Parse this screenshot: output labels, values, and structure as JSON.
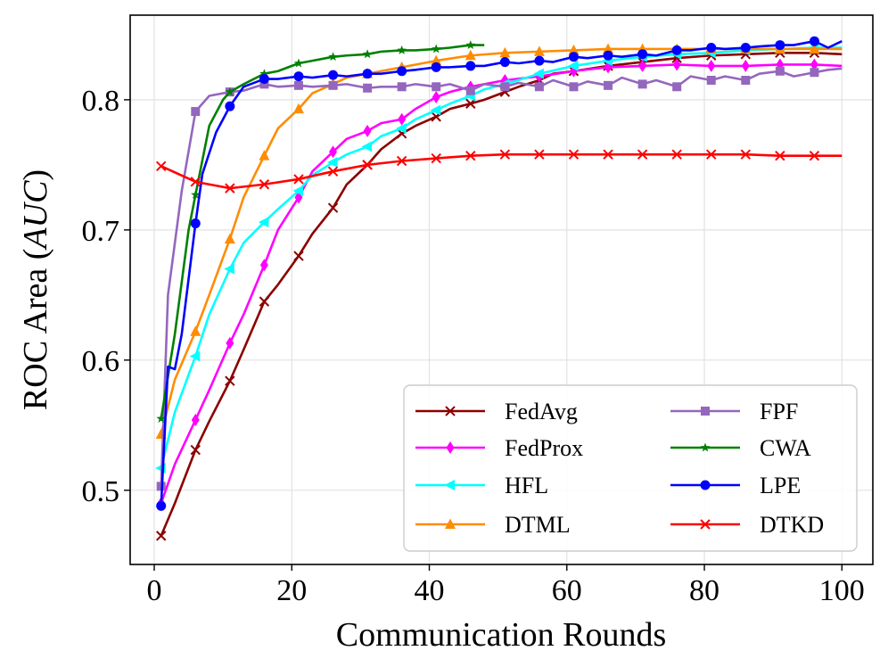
{
  "chart_data": {
    "type": "line",
    "title": "",
    "xlabel": "Communication Rounds",
    "ylabel_prefix": "ROC Area (",
    "ylabel_italic": "AUC",
    "ylabel_suffix": ")",
    "xlim": [
      -3.5,
      104.5
    ],
    "ylim": [
      0.443,
      0.865
    ],
    "x_ticks": [
      0,
      20,
      40,
      60,
      80,
      100
    ],
    "x_tick_labels": [
      "0",
      "20",
      "40",
      "60",
      "80",
      "100"
    ],
    "y_ticks": [
      0.5,
      0.6,
      0.7,
      0.8
    ],
    "y_tick_labels": [
      "0.5",
      "0.6",
      "0.7",
      "0.8"
    ],
    "grid": true,
    "legend_position": "bottom-right",
    "series": [
      {
        "name": "FedAvg",
        "color": "#8b0000",
        "marker": "x",
        "x": [
          1,
          3,
          6,
          8,
          11,
          13,
          16,
          18,
          21,
          23,
          26,
          28,
          31,
          33,
          36,
          38,
          41,
          43,
          46,
          48,
          51,
          53,
          56,
          58,
          61,
          66,
          71,
          76,
          81,
          86,
          91,
          96,
          100
        ],
        "y": [
          0.465,
          0.49,
          0.531,
          0.553,
          0.584,
          0.608,
          0.645,
          0.658,
          0.68,
          0.697,
          0.717,
          0.735,
          0.75,
          0.762,
          0.774,
          0.78,
          0.787,
          0.793,
          0.797,
          0.8,
          0.806,
          0.81,
          0.815,
          0.82,
          0.822,
          0.826,
          0.829,
          0.832,
          0.834,
          0.835,
          0.836,
          0.836,
          0.835
        ]
      },
      {
        "name": "FedProx",
        "color": "#ff00ff",
        "marker": "diamond",
        "x": [
          1,
          3,
          6,
          8,
          11,
          13,
          16,
          18,
          21,
          23,
          26,
          28,
          31,
          33,
          36,
          38,
          41,
          43,
          46,
          48,
          51,
          56,
          61,
          66,
          71,
          76,
          81,
          86,
          91,
          96,
          100
        ],
        "y": [
          0.49,
          0.52,
          0.554,
          0.577,
          0.613,
          0.635,
          0.673,
          0.7,
          0.725,
          0.745,
          0.76,
          0.77,
          0.776,
          0.782,
          0.785,
          0.793,
          0.802,
          0.806,
          0.81,
          0.812,
          0.815,
          0.818,
          0.822,
          0.825,
          0.826,
          0.827,
          0.826,
          0.826,
          0.827,
          0.827,
          0.826
        ]
      },
      {
        "name": "HFL",
        "color": "#00ffff",
        "marker": "triangle-left",
        "x": [
          1,
          3,
          6,
          8,
          11,
          13,
          16,
          18,
          21,
          23,
          26,
          28,
          31,
          33,
          36,
          38,
          41,
          43,
          46,
          48,
          51,
          56,
          61,
          66,
          71,
          76,
          81,
          86,
          91,
          96,
          100
        ],
        "y": [
          0.517,
          0.56,
          0.603,
          0.635,
          0.67,
          0.69,
          0.706,
          0.716,
          0.73,
          0.742,
          0.752,
          0.758,
          0.764,
          0.772,
          0.778,
          0.785,
          0.792,
          0.797,
          0.803,
          0.808,
          0.812,
          0.82,
          0.826,
          0.83,
          0.833,
          0.835,
          0.836,
          0.838,
          0.839,
          0.84,
          0.84
        ]
      },
      {
        "name": "DTML",
        "color": "#ff8c00",
        "marker": "triangle-up",
        "x": [
          1,
          3,
          6,
          8,
          11,
          13,
          16,
          18,
          21,
          23,
          26,
          28,
          31,
          36,
          41,
          46,
          51,
          56,
          61,
          66,
          71,
          76,
          81,
          86,
          91,
          96,
          100
        ],
        "y": [
          0.543,
          0.585,
          0.622,
          0.65,
          0.693,
          0.725,
          0.757,
          0.778,
          0.793,
          0.805,
          0.812,
          0.817,
          0.82,
          0.825,
          0.83,
          0.834,
          0.836,
          0.837,
          0.838,
          0.839,
          0.839,
          0.839,
          0.839,
          0.839,
          0.839,
          0.839,
          0.839
        ]
      },
      {
        "name": "FPF",
        "color": "#9467bd",
        "marker": "square",
        "x": [
          1,
          2,
          4,
          6,
          8,
          11,
          13,
          16,
          18,
          21,
          23,
          26,
          28,
          31,
          33,
          36,
          38,
          41,
          43,
          46,
          48,
          51,
          53,
          56,
          58,
          61,
          63,
          66,
          68,
          71,
          73,
          76,
          78,
          81,
          83,
          86,
          88,
          91,
          93,
          96,
          98,
          100
        ],
        "y": [
          0.503,
          0.65,
          0.73,
          0.791,
          0.803,
          0.806,
          0.807,
          0.812,
          0.81,
          0.811,
          0.81,
          0.811,
          0.812,
          0.809,
          0.81,
          0.81,
          0.812,
          0.81,
          0.812,
          0.807,
          0.812,
          0.81,
          0.813,
          0.81,
          0.815,
          0.81,
          0.814,
          0.811,
          0.817,
          0.812,
          0.815,
          0.81,
          0.818,
          0.815,
          0.818,
          0.815,
          0.82,
          0.822,
          0.818,
          0.821,
          0.823,
          0.824
        ]
      },
      {
        "name": "CWA",
        "color": "#008000",
        "marker": "star",
        "x": [
          1,
          3,
          5,
          6,
          8,
          10,
          11,
          13,
          16,
          18,
          21,
          23,
          26,
          28,
          31,
          33,
          36,
          38,
          41,
          43,
          46,
          48
        ],
        "y": [
          0.555,
          0.62,
          0.7,
          0.727,
          0.78,
          0.8,
          0.806,
          0.812,
          0.82,
          0.822,
          0.828,
          0.83,
          0.833,
          0.834,
          0.835,
          0.837,
          0.838,
          0.838,
          0.839,
          0.84,
          0.842,
          0.842
        ]
      },
      {
        "name": "LPE",
        "color": "#0000ff",
        "marker": "circle",
        "x": [
          1,
          2,
          3,
          4,
          6,
          7,
          9,
          11,
          13,
          16,
          18,
          21,
          23,
          26,
          28,
          31,
          33,
          36,
          38,
          41,
          43,
          46,
          48,
          51,
          53,
          56,
          58,
          61,
          63,
          66,
          68,
          71,
          73,
          76,
          78,
          81,
          83,
          86,
          88,
          91,
          93,
          96,
          98,
          100
        ],
        "y": [
          0.488,
          0.595,
          0.593,
          0.62,
          0.705,
          0.743,
          0.775,
          0.795,
          0.81,
          0.816,
          0.816,
          0.818,
          0.817,
          0.819,
          0.818,
          0.82,
          0.82,
          0.822,
          0.823,
          0.825,
          0.825,
          0.826,
          0.826,
          0.829,
          0.828,
          0.83,
          0.829,
          0.833,
          0.832,
          0.834,
          0.833,
          0.835,
          0.834,
          0.838,
          0.838,
          0.84,
          0.839,
          0.84,
          0.841,
          0.842,
          0.842,
          0.845,
          0.84,
          0.845
        ]
      },
      {
        "name": "DTKD",
        "color": "#ff0000",
        "marker": "x",
        "x": [
          1,
          6,
          11,
          16,
          21,
          26,
          31,
          36,
          41,
          46,
          51,
          56,
          61,
          66,
          71,
          76,
          81,
          86,
          91,
          96,
          100
        ],
        "y": [
          0.749,
          0.737,
          0.732,
          0.735,
          0.739,
          0.745,
          0.75,
          0.753,
          0.755,
          0.757,
          0.758,
          0.758,
          0.758,
          0.758,
          0.758,
          0.758,
          0.758,
          0.758,
          0.757,
          0.757,
          0.757
        ]
      }
    ],
    "marker_every": [
      0,
      2,
      4,
      6,
      8,
      10,
      12,
      14,
      16,
      18,
      20,
      22,
      24,
      26,
      28,
      30,
      32,
      34,
      36,
      38,
      40,
      42
    ]
  }
}
